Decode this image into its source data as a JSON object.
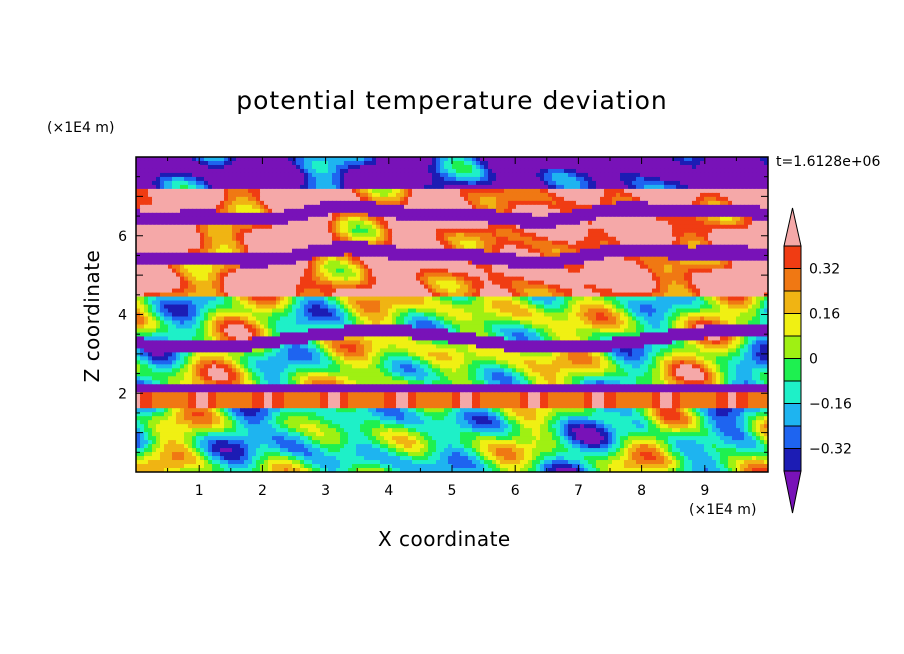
{
  "chart_data": {
    "type": "heatmap",
    "title": "potential temperature deviation",
    "xlabel": "X coordinate",
    "ylabel": "Z coordinate",
    "x_scale_label": "(×1E4 m)",
    "y_scale_label": "(×1E4 m)",
    "annotation": "t=1.6128e+06",
    "xlim": [
      0,
      10
    ],
    "ylim": [
      0,
      8
    ],
    "x_ticks": [
      1,
      2,
      3,
      4,
      5,
      6,
      7,
      8,
      9
    ],
    "y_ticks": [
      2,
      4,
      6
    ],
    "colorbar": {
      "tick_labels": [
        "0.32",
        "0.16",
        "0",
        "−0.16",
        "−0.32"
      ],
      "tick_values": [
        0.32,
        0.16,
        0,
        -0.16,
        -0.32
      ],
      "levels": [
        -0.4,
        -0.32,
        -0.24,
        -0.16,
        -0.08,
        0,
        0.08,
        0.16,
        0.24,
        0.32,
        0.4
      ],
      "colors": [
        "#1c1cb4",
        "#1e64f0",
        "#1eb4f0",
        "#1ef0c8",
        "#1ef050",
        "#9ff013",
        "#f0f013",
        "#f0b413",
        "#f07813",
        "#f03c13"
      ],
      "under_color": "#7812b8",
      "over_color": "#f5a8a8"
    },
    "bands": [
      {
        "z": [
          7.2,
          8.0
        ],
        "description_color": "#7812b8"
      },
      {
        "z": [
          6.2,
          7.2
        ],
        "description_color": "#f5a8a8"
      },
      {
        "z": [
          4.5,
          6.2
        ],
        "description_color": "#f5a8a8"
      },
      {
        "z": [
          2.0,
          4.5
        ],
        "description_color": "#1ef050"
      },
      {
        "z": [
          0.0,
          2.0
        ],
        "description_color": "#1ef0c8"
      }
    ]
  }
}
